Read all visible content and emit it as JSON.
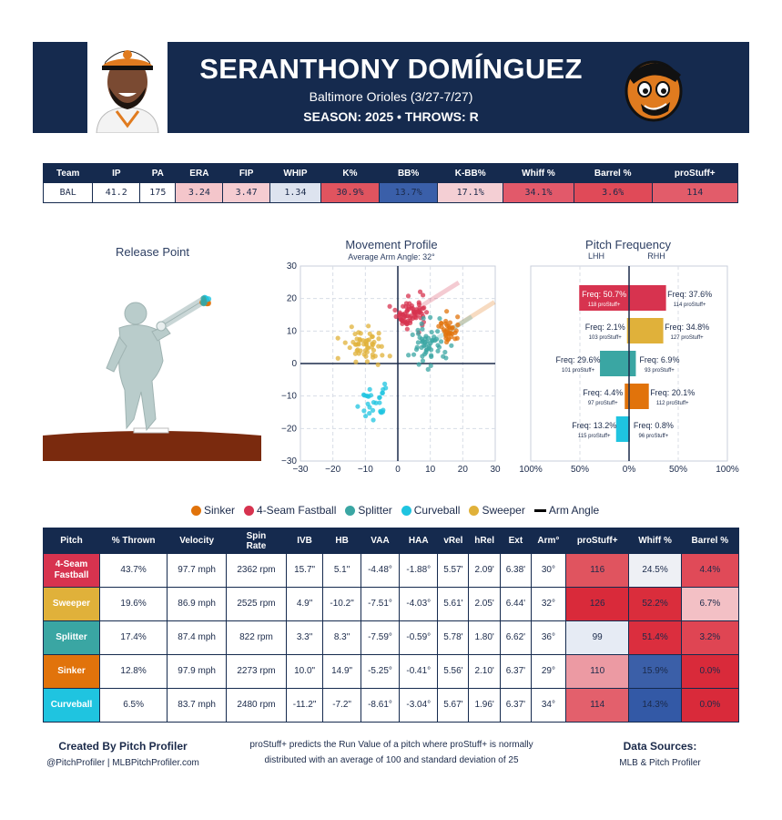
{
  "header": {
    "name": "SERANTHONY DOMÍNGUEZ",
    "team_line": "Baltimore Orioles (3/27-7/27)",
    "season_line": "SEASON: 2025 • THROWS: R"
  },
  "stats": {
    "columns": [
      "Team",
      "IP",
      "PA",
      "ERA",
      "FIP",
      "WHIP",
      "K%",
      "BB%",
      "K-BB%",
      "Whiff %",
      "Barrel %",
      "proStuff+"
    ],
    "row": [
      "BAL",
      "41.2",
      "175",
      "3.24",
      "3.47",
      "1.34",
      "30.9%",
      "13.7%",
      "17.1%",
      "34.1%",
      "3.6%",
      "114"
    ],
    "colors": [
      "#ffffff",
      "#ffffff",
      "#ffffff",
      "#f4c6cb",
      "#f5ccd1",
      "#dde3ef",
      "#e0545f",
      "#3a5fa9",
      "#f4cfd4",
      "#e2596a",
      "#e04a58",
      "#e25c6a"
    ]
  },
  "release": {
    "title": "Release Point"
  },
  "movement": {
    "title": "Movement Profile",
    "subtitle": "Average Arm Angle: 32°"
  },
  "frequency": {
    "title": "Pitch Frequency",
    "lhh_label": "LHH",
    "rhh_label": "RHH"
  },
  "chart_data": [
    {
      "type": "scatter",
      "title": "Movement Profile",
      "subtitle": "Average Arm Angle: 32°",
      "xlim": [
        -30,
        30
      ],
      "ylim": [
        -30,
        30
      ],
      "xticks": [
        "−30",
        "−20",
        "−10",
        "0",
        "10",
        "20",
        "30"
      ],
      "yticks": [
        "30",
        "20",
        "10",
        "0",
        "−10",
        "−20",
        "−30"
      ],
      "grid": true,
      "series": [
        {
          "name": "4-Seam Fastball",
          "color": "#d7334f",
          "cx": 4.5,
          "cy": 16,
          "sx": 2.6,
          "sy": 2.3,
          "n": 70
        },
        {
          "name": "Sinker",
          "color": "#e1730b",
          "cx": 15.5,
          "cy": 10,
          "sx": 1.6,
          "sy": 2.0,
          "n": 35
        },
        {
          "name": "Splitter",
          "color": "#3aa6a3",
          "cx": 8.5,
          "cy": 5.5,
          "sx": 3.0,
          "sy": 4.0,
          "n": 55
        },
        {
          "name": "Curveball",
          "color": "#1fc4e0",
          "cx": -7,
          "cy": -11.5,
          "sx": 2.4,
          "sy": 3.0,
          "n": 30
        },
        {
          "name": "Sweeper",
          "color": "#e0b13a",
          "cx": -10,
          "cy": 5,
          "sx": 3.0,
          "sy": 2.5,
          "n": 55
        }
      ],
      "arm_angle_deg": 32
    },
    {
      "type": "bar",
      "title": "Pitch Frequency",
      "xticks": [
        "100%",
        "50%",
        "0%",
        "50%",
        "100%"
      ],
      "xlim": [
        -100,
        100
      ],
      "categories": [
        "4-Seam Fastball",
        "Sweeper",
        "Splitter",
        "Sinker",
        "Curveball"
      ],
      "colors": [
        "#d7334f",
        "#e0b13a",
        "#3aa6a3",
        "#e1730b",
        "#1fc4e0"
      ],
      "lhh": [
        50.7,
        2.1,
        29.6,
        4.4,
        13.2
      ],
      "rhh": [
        37.6,
        34.8,
        6.9,
        20.1,
        0.8
      ],
      "lhh_freq_text": [
        "Freq: 50.7%",
        "Freq: 2.1%",
        "Freq: 29.6%",
        "Freq: 4.4%",
        "Freq: 13.2%"
      ],
      "lhh_stuff_text": [
        "118 proStuff+",
        "103 proStuff+",
        "101 proStuff+",
        "97 proStuff+",
        "115 proStuff+"
      ],
      "rhh_freq_text": [
        "Freq: 37.6%",
        "Freq: 34.8%",
        "Freq: 6.9%",
        "Freq: 20.1%",
        "Freq: 0.8%"
      ],
      "rhh_stuff_text": [
        "114 proStuff+",
        "127 proStuff+",
        "93 proStuff+",
        "112 proStuff+",
        "96 proStuff+"
      ]
    }
  ],
  "legend": [
    {
      "label": "Sinker",
      "color": "#e1730b"
    },
    {
      "label": "4-Seam Fastball",
      "color": "#d7334f"
    },
    {
      "label": "Splitter",
      "color": "#3aa6a3"
    },
    {
      "label": "Curveball",
      "color": "#1fc4e0"
    },
    {
      "label": "Sweeper",
      "color": "#e0b13a"
    },
    {
      "label": "Arm Angle",
      "color": "#000000"
    }
  ],
  "pitch_table": {
    "columns": [
      "Pitch",
      "% Thrown",
      "Velocity",
      "Spin Rate",
      "IVB",
      "HB",
      "VAA",
      "HAA",
      "vRel",
      "hRel",
      "Ext",
      "Arm°",
      "proStuff+",
      "Whiff %",
      "Barrel %"
    ],
    "rows": [
      {
        "pitch": "4-Seam Fastball",
        "color": "#d7334f",
        "cells": [
          "43.7%",
          "97.7 mph",
          "2362 rpm",
          "15.7\"",
          "5.1\"",
          "-4.48°",
          "-1.88°",
          "5.57'",
          "2.09'",
          "6.38'",
          "30°",
          "116",
          "24.5%",
          "4.4%"
        ],
        "metric_colors": [
          "#e0545f",
          "#eef0f5",
          "#e04a58"
        ]
      },
      {
        "pitch": "Sweeper",
        "color": "#e0b13a",
        "cells": [
          "19.6%",
          "86.9 mph",
          "2525 rpm",
          "4.9\"",
          "-10.2\"",
          "-7.51°",
          "-4.03°",
          "5.61'",
          "2.05'",
          "6.44'",
          "32°",
          "126",
          "52.2%",
          "6.7%"
        ],
        "metric_colors": [
          "#d92a3a",
          "#da2d3c",
          "#f3c0c5"
        ]
      },
      {
        "pitch": "Splitter",
        "color": "#3aa6a3",
        "cells": [
          "17.4%",
          "87.4 mph",
          "822 rpm",
          "3.3\"",
          "8.3\"",
          "-7.59°",
          "-0.59°",
          "5.78'",
          "1.80'",
          "6.62'",
          "36°",
          "99",
          "51.4%",
          "3.2%"
        ],
        "metric_colors": [
          "#e6ebf4",
          "#db2e3e",
          "#df4553"
        ]
      },
      {
        "pitch": "Sinker",
        "color": "#e1730b",
        "cells": [
          "12.8%",
          "97.9 mph",
          "2273 rpm",
          "10.0\"",
          "14.9\"",
          "-5.25°",
          "-0.41°",
          "5.56'",
          "2.10'",
          "6.37'",
          "29°",
          "110",
          "15.9%",
          "0.0%"
        ],
        "metric_colors": [
          "#ec9aa3",
          "#3b5fa8",
          "#d92a3a"
        ]
      },
      {
        "pitch": "Curveball",
        "color": "#1fc4e0",
        "cells": [
          "6.5%",
          "83.7 mph",
          "2480 rpm",
          "-11.2\"",
          "-7.2\"",
          "-8.61°",
          "-3.04°",
          "5.67'",
          "1.96'",
          "6.37'",
          "34°",
          "114",
          "14.3%",
          "0.0%"
        ],
        "metric_colors": [
          "#e3606c",
          "#3359a6",
          "#d92a3a"
        ]
      }
    ]
  },
  "footer": {
    "created_by": "Created By Pitch Profiler",
    "handles": "@PitchProfiler | MLBPitchProfiler.com",
    "note_line1": "proStuff+ predicts the Run Value of a pitch where proStuff+ is normally",
    "note_line2": "distributed with an average of 100 and standard deviation of 25",
    "sources_title": "Data Sources:",
    "sources": "MLB & Pitch Profiler"
  }
}
